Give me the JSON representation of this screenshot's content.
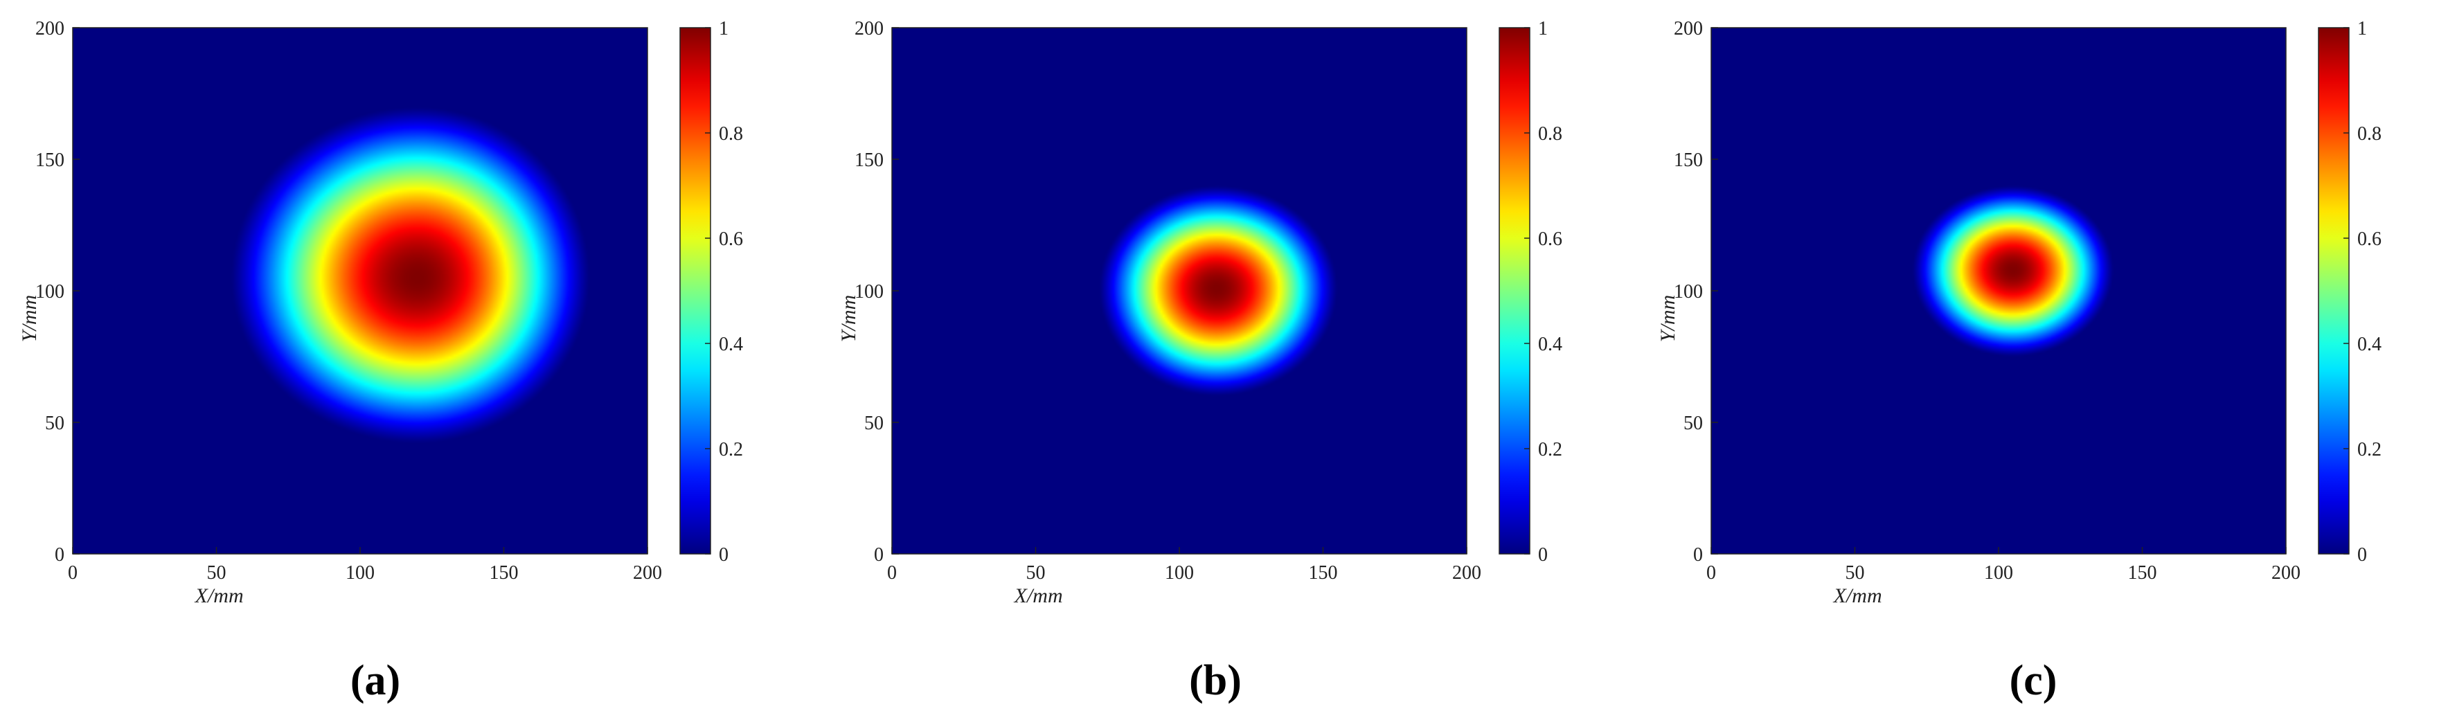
{
  "chart_data": [
    {
      "type": "heatmap",
      "panel_label": "(a)",
      "xlabel": "X/mm",
      "ylabel": "Y/mm",
      "xlim": [
        0,
        200
      ],
      "ylim": [
        0,
        200
      ],
      "xticks": [
        0,
        50,
        100,
        150,
        200
      ],
      "yticks": [
        0,
        50,
        100,
        150,
        200
      ],
      "colorbar": {
        "min": 0,
        "max": 1,
        "ticks": [
          0,
          0.2,
          0.4,
          0.6,
          0.8,
          1
        ],
        "colormap": "jet"
      },
      "peak": {
        "x": 120,
        "y": 105,
        "value": 1
      },
      "extent_at_zero": {
        "x": [
          55,
          180
        ],
        "y": [
          42,
          170
        ]
      }
    },
    {
      "type": "heatmap",
      "panel_label": "(b)",
      "xlabel": "X/mm",
      "ylabel": "Y/mm",
      "xlim": [
        0,
        200
      ],
      "ylim": [
        0,
        200
      ],
      "xticks": [
        0,
        50,
        100,
        150,
        200
      ],
      "yticks": [
        0,
        50,
        100,
        150,
        200
      ],
      "colorbar": {
        "min": 0,
        "max": 1,
        "ticks": [
          0,
          0.2,
          0.4,
          0.6,
          0.8,
          1
        ],
        "colormap": "jet"
      },
      "peak": {
        "x": 113,
        "y": 101,
        "value": 1
      },
      "extent_at_zero": {
        "x": [
          72,
          155
        ],
        "y": [
          60,
          140
        ]
      }
    },
    {
      "type": "heatmap",
      "panel_label": "(c)",
      "xlabel": "X/mm",
      "ylabel": "Y/mm",
      "xlim": [
        0,
        200
      ],
      "ylim": [
        0,
        200
      ],
      "xticks": [
        0,
        50,
        100,
        150,
        200
      ],
      "yticks": [
        0,
        50,
        100,
        150,
        200
      ],
      "colorbar": {
        "min": 0,
        "max": 1,
        "ticks": [
          0,
          0.2,
          0.4,
          0.6,
          0.8,
          1
        ],
        "colormap": "jet"
      },
      "peak": {
        "x": 105,
        "y": 108,
        "value": 1
      },
      "extent_at_zero": {
        "x": [
          70,
          140
        ],
        "y": [
          75,
          140
        ]
      }
    }
  ],
  "colors": {
    "background": "#00008f",
    "peak": "#800000"
  }
}
